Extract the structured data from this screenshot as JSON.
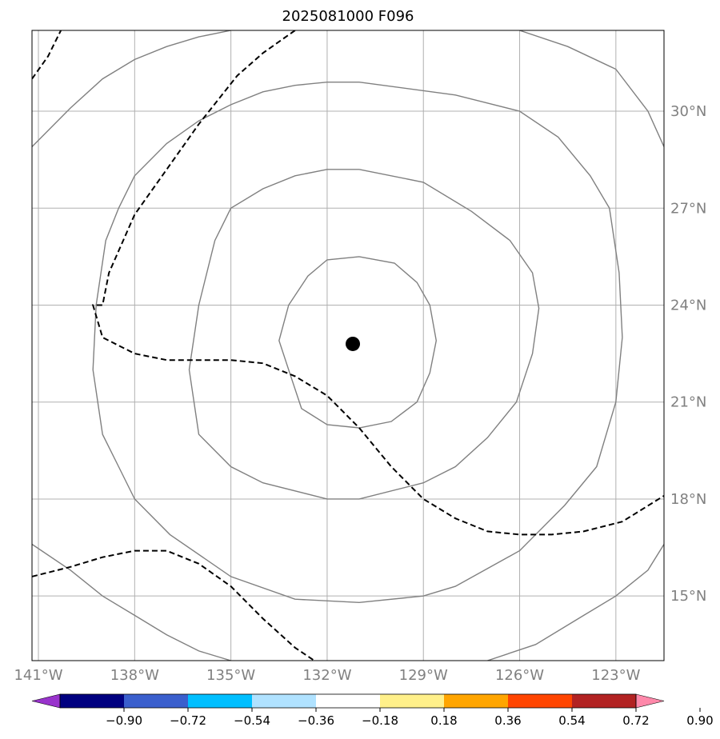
{
  "chart_data": {
    "type": "contour-map",
    "title": "2025081000 F096",
    "projection": "lon-lat",
    "xlim": [
      -141.2,
      -121.5
    ],
    "ylim": [
      13.0,
      32.5
    ],
    "x_ticks": [
      -141,
      -138,
      -135,
      -132,
      -129,
      -126,
      -123
    ],
    "x_tick_labels": [
      "141°W",
      "138°W",
      "135°W",
      "132°W",
      "129°W",
      "126°W",
      "123°W"
    ],
    "y_ticks": [
      15,
      18,
      21,
      24,
      27,
      30
    ],
    "y_tick_labels": [
      "15°N",
      "18°N",
      "21°N",
      "24°N",
      "27°N",
      "30°N"
    ],
    "y_tick_side": "right",
    "grid": true,
    "center_marker": {
      "lon": -131.2,
      "lat": 22.8
    },
    "range_rings": [
      {
        "lon": [
          -131.0,
          -129.9,
          -129.2,
          -128.8,
          -128.6,
          -128.8,
          -129.2,
          -130.0,
          -131.0,
          -132.0,
          -132.8,
          -133.2,
          -133.5,
          -133.2,
          -132.6,
          -132.0,
          -131.0
        ],
        "lat": [
          25.5,
          25.3,
          24.7,
          24.0,
          22.9,
          21.9,
          21.0,
          20.4,
          20.2,
          20.3,
          20.8,
          22.0,
          22.9,
          24.0,
          24.9,
          25.4,
          25.5
        ]
      },
      {
        "lon": [
          -131.0,
          -129.0,
          -127.5,
          -126.3,
          -125.6,
          -125.4,
          -125.6,
          -126.1,
          -127.0,
          -128.0,
          -129.0,
          -131.0,
          -132.0,
          -134.0,
          -135.0,
          -136.0,
          -136.3,
          -136.0,
          -135.5,
          -135.0,
          -134.0,
          -133.0,
          -132.0,
          -131.0
        ],
        "lat": [
          28.2,
          27.8,
          26.9,
          26.0,
          25.0,
          23.9,
          22.5,
          21.0,
          19.9,
          19.0,
          18.5,
          18.0,
          18.0,
          18.5,
          19.0,
          20.0,
          22.0,
          24.0,
          26.0,
          27.0,
          27.6,
          28.0,
          28.2,
          28.2
        ]
      },
      {
        "lon": [
          -131.0,
          -128.0,
          -126.0,
          -124.8,
          -123.8,
          -123.2,
          -122.9,
          -122.8,
          -123.0,
          -123.6,
          -124.6,
          -126.0,
          -128.0,
          -129.0,
          -131.0,
          -133.0,
          -135.0,
          -136.9,
          -138.0,
          -138.5,
          -139.0,
          -139.3,
          -139.2,
          -138.9,
          -138.5,
          -138.0,
          -137.0,
          -136.0,
          -135.0,
          -134.0,
          -133.0,
          -132.0,
          -131.0
        ],
        "lat": [
          30.9,
          30.5,
          30.0,
          29.2,
          28.0,
          27.0,
          25.0,
          23.0,
          21.0,
          19.0,
          17.8,
          16.4,
          15.3,
          15.0,
          14.8,
          14.9,
          15.6,
          16.9,
          18.0,
          19.0,
          20.0,
          22.0,
          24.0,
          26.0,
          27.0,
          28.0,
          29.0,
          29.7,
          30.2,
          30.6,
          30.8,
          30.9,
          30.9
        ]
      },
      {
        "lon": [
          -126.0,
          -124.5,
          -123.0,
          -122.0,
          -121.5
        ],
        "lat": [
          32.5,
          32.0,
          31.3,
          30.0,
          28.9
        ]
      },
      {
        "lon": [
          -121.5,
          -122.0,
          -123.0,
          -124.0,
          -125.5,
          -127.0
        ],
        "lat": [
          16.6,
          15.8,
          15.0,
          14.4,
          13.5,
          13.0
        ]
      },
      {
        "lon": [
          -141.2,
          -140.0,
          -139.0,
          -138.0,
          -137.0,
          -136.0,
          -135.0
        ],
        "lat": [
          16.6,
          15.8,
          15.0,
          14.4,
          13.8,
          13.3,
          13.0
        ]
      },
      {
        "lon": [
          -141.2,
          -140.0,
          -139.0,
          -138.0,
          -137.0,
          -136.0,
          -135.0
        ],
        "lat": [
          28.9,
          30.1,
          31.0,
          31.6,
          32.0,
          32.3,
          32.5
        ]
      }
    ],
    "dashed_contours": [
      {
        "lon": [
          -141.2,
          -140.7,
          -140.3
        ],
        "lat": [
          31.0,
          31.7,
          32.5
        ]
      },
      {
        "lon": [
          -133.0,
          -134.0,
          -134.8,
          -136.0,
          -137.0,
          -138.0,
          -138.8,
          -139.0,
          -139.3,
          -139.0,
          -138.0,
          -137.0,
          -135.0,
          -134.0,
          -133.0,
          -132.0,
          -131.0,
          -130.0,
          -129.0,
          -128.0,
          -127.0,
          -126.0,
          -125.0,
          -124.0,
          -122.8,
          -121.5
        ],
        "lat": [
          32.5,
          31.8,
          31.1,
          29.6,
          28.2,
          26.8,
          25.0,
          24.0,
          24.0,
          23.0,
          22.5,
          22.3,
          22.3,
          22.2,
          21.8,
          21.2,
          20.2,
          19.0,
          18.0,
          17.4,
          17.0,
          16.9,
          16.9,
          17.0,
          17.3,
          18.1
        ]
      },
      {
        "lon": [
          -141.2,
          -140.0,
          -139.0,
          -138.0,
          -137.0,
          -136.0,
          -135.0,
          -134.0,
          -133.0,
          -132.4
        ],
        "lat": [
          15.6,
          15.9,
          16.2,
          16.4,
          16.4,
          16.0,
          15.3,
          14.3,
          13.4,
          13.0
        ]
      }
    ],
    "colorbar": {
      "orientation": "horizontal",
      "extend": "both",
      "levels": [
        -0.9,
        -0.72,
        -0.54,
        -0.36,
        -0.18,
        0.18,
        0.36,
        0.54,
        0.72,
        0.9
      ],
      "tick_labels": [
        "−0.90",
        "−0.72",
        "−0.54",
        "−0.36",
        "−0.18",
        "0.18",
        "0.36",
        "0.54",
        "0.72",
        "0.90"
      ],
      "colors": [
        "#9933cc",
        "#000080",
        "#3a5fcd",
        "#00bfff",
        "#b0e2ff",
        "#ffffff",
        "#fff08a",
        "#ffa500",
        "#ff4500",
        "#b22222",
        "#ff88aa"
      ]
    },
    "colors": {
      "grid": "#b0b0b0",
      "ring": "#808080",
      "dashed": "#000000",
      "marker": "#000000",
      "tick_label": "#808080"
    }
  }
}
